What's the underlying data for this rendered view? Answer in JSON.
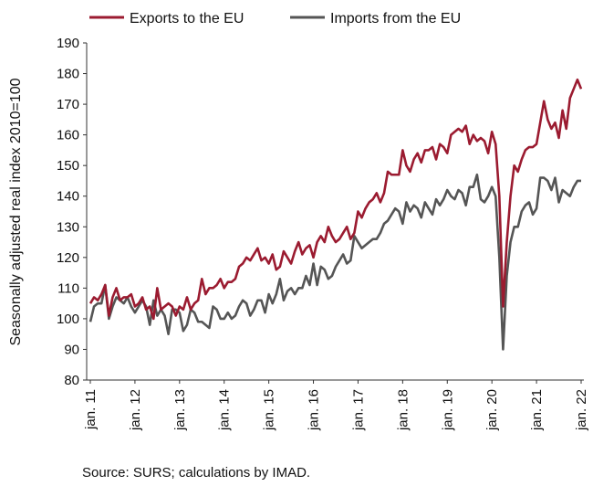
{
  "chart_data": {
    "type": "line",
    "y_label": "Seasonally adjusted real index 2010=100",
    "source": "Source: SURS; calculations by IMAD.",
    "categories": [
      "jan. 11",
      null,
      null,
      null,
      null,
      null,
      null,
      null,
      null,
      null,
      null,
      null,
      "jan. 12",
      null,
      null,
      null,
      null,
      null,
      null,
      null,
      null,
      null,
      null,
      null,
      "jan. 13",
      null,
      null,
      null,
      null,
      null,
      null,
      null,
      null,
      null,
      null,
      null,
      "jan. 14",
      null,
      null,
      null,
      null,
      null,
      null,
      null,
      null,
      null,
      null,
      null,
      "jan. 15",
      null,
      null,
      null,
      null,
      null,
      null,
      null,
      null,
      null,
      null,
      null,
      "jan. 16",
      null,
      null,
      null,
      null,
      null,
      null,
      null,
      null,
      null,
      null,
      null,
      "jan. 17",
      null,
      null,
      null,
      null,
      null,
      null,
      null,
      null,
      null,
      null,
      null,
      "jan. 18",
      null,
      null,
      null,
      null,
      null,
      null,
      null,
      null,
      null,
      null,
      null,
      "jan. 19",
      null,
      null,
      null,
      null,
      null,
      null,
      null,
      null,
      null,
      null,
      null,
      "jan. 20",
      null,
      null,
      null,
      null,
      null,
      null,
      null,
      null,
      null,
      null,
      null,
      "jan. 21",
      null,
      null,
      null,
      null,
      null,
      null,
      null,
      null,
      null,
      null,
      null,
      "jan. 22"
    ],
    "series": [
      {
        "name": "Exports to the EU",
        "color": "#9b1b30",
        "values": [
          105,
          107,
          106,
          108,
          111,
          101,
          107,
          110,
          106,
          107,
          107,
          108,
          104,
          105,
          107,
          103,
          104,
          100,
          110,
          103,
          104,
          105,
          104,
          101,
          104,
          103,
          107,
          103,
          105,
          106,
          113,
          108,
          110,
          110,
          111,
          113,
          110,
          112,
          112,
          113,
          117,
          118,
          120,
          119,
          121,
          123,
          119,
          120,
          118,
          121,
          116,
          117,
          122,
          120,
          118,
          122,
          125,
          121,
          123,
          124,
          120,
          125,
          127,
          125,
          130,
          127,
          125,
          126,
          128,
          130,
          126,
          128,
          135,
          133,
          136,
          138,
          139,
          141,
          138,
          141,
          148,
          147,
          147,
          147,
          155,
          150,
          148,
          152,
          154,
          151,
          155,
          155,
          156,
          152,
          157,
          156,
          154,
          160,
          161,
          162,
          161,
          163,
          157,
          160,
          158,
          159,
          158,
          154,
          161,
          157,
          140,
          104,
          125,
          140,
          150,
          148,
          152,
          155,
          156,
          156,
          157,
          164,
          171,
          165,
          162,
          164,
          159,
          168,
          162,
          172,
          175,
          178,
          175
        ]
      },
      {
        "name": "Imports from the EU",
        "color": "#555555",
        "values": [
          99,
          104,
          105,
          105,
          111,
          100,
          104,
          107,
          106,
          105,
          107,
          104,
          102,
          104,
          106,
          104,
          98,
          106,
          101,
          103,
          101,
          95,
          103,
          103,
          102,
          96,
          98,
          103,
          102,
          99,
          99,
          98,
          97,
          104,
          103,
          100,
          100,
          102,
          100,
          101,
          104,
          106,
          105,
          101,
          103,
          106,
          106,
          102,
          108,
          105,
          108,
          113,
          106,
          109,
          110,
          108,
          110,
          110,
          114,
          111,
          118,
          111,
          117,
          116,
          113,
          114,
          117,
          119,
          121,
          118,
          119,
          127,
          125,
          123,
          124,
          125,
          126,
          126,
          128,
          131,
          132,
          134,
          136,
          135,
          131,
          138,
          135,
          137,
          136,
          133,
          138,
          136,
          134,
          139,
          137,
          139,
          142,
          140,
          139,
          142,
          141,
          137,
          143,
          143,
          147,
          139,
          138,
          140,
          143,
          140,
          120,
          90,
          114,
          125,
          130,
          130,
          135,
          137,
          138,
          134,
          136,
          146,
          146,
          145,
          142,
          146,
          138,
          142,
          141,
          140,
          143,
          145,
          145
        ]
      }
    ],
    "ylim": [
      80,
      190
    ],
    "yticks": [
      80,
      90,
      100,
      110,
      120,
      130,
      140,
      150,
      160,
      170,
      180,
      190
    ],
    "grid": false,
    "legend": "top"
  }
}
